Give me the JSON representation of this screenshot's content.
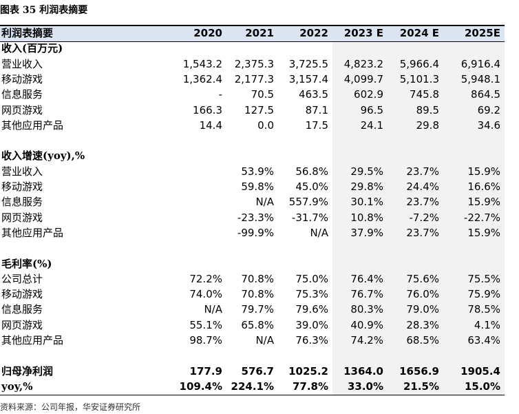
{
  "title": "图表 35 利润表摘要",
  "table": {
    "header": [
      "利润表摘要",
      "2020",
      "2021",
      "2022",
      "2023 E",
      "2024 E",
      "2025E"
    ],
    "sections": [
      {
        "title": "收入(百万元)",
        "rows": [
          [
            "营业收入",
            "1,543.2",
            "2,375.3",
            "3,725.5",
            "4,823.2",
            "5,966.4",
            "6,916.4"
          ],
          [
            "移动游戏",
            "1,362.4",
            "2,177.3",
            "3,157.4",
            "4,099.7",
            "5,101.3",
            "5,948.1"
          ],
          [
            "信息服务",
            "-",
            "70.5",
            "463.5",
            "602.9",
            "745.8",
            "864.5"
          ],
          [
            "网页游戏",
            "166.3",
            "127.5",
            "87.1",
            "96.5",
            "89.5",
            "69.2"
          ],
          [
            "其他应用产品",
            "14.4",
            "0.0",
            "17.5",
            "24.1",
            "29.8",
            "34.6"
          ]
        ]
      },
      {
        "title": "收入增速(yoy),%",
        "rows": [
          [
            "营业收入",
            "",
            "53.9%",
            "56.8%",
            "29.5%",
            "23.7%",
            "15.9%"
          ],
          [
            "移动游戏",
            "",
            "59.8%",
            "45.0%",
            "29.8%",
            "24.4%",
            "16.6%"
          ],
          [
            "信息服务",
            "",
            "N/A",
            "557.9%",
            "30.1%",
            "23.7%",
            "15.9%"
          ],
          [
            "网页游戏",
            "",
            "-23.3%",
            "-31.7%",
            "10.8%",
            "-7.2%",
            "-22.7%"
          ],
          [
            "其他应用产品",
            "",
            "-99.9%",
            "N/A",
            "37.9%",
            "23.7%",
            "15.9%"
          ]
        ]
      },
      {
        "title": "毛利率(%)",
        "rows": [
          [
            "公司总计",
            "72.2%",
            "70.8%",
            "75.0%",
            "76.4%",
            "75.6%",
            "75.5%"
          ],
          [
            "移动游戏",
            "74.0%",
            "70.8%",
            "75.3%",
            "76.7%",
            "76.0%",
            "75.9%"
          ],
          [
            "信息服务",
            "N/A",
            "79.7%",
            "79.6%",
            "80.3%",
            "79.0%",
            "78.5%"
          ],
          [
            "网页游戏",
            "55.1%",
            "65.8%",
            "39.0%",
            "40.9%",
            "28.3%",
            "4.1%"
          ],
          [
            "其他应用产品",
            "98.7%",
            "N/A",
            "76.3%",
            "74.2%",
            "68.5%",
            "63.4%"
          ]
        ]
      }
    ],
    "summary": [
      [
        "归母净利润",
        "177.9",
        "576.7",
        "1025.2",
        "1364.0",
        "1656.9",
        "1905.4"
      ],
      [
        "yoy,%",
        "109.4%",
        "224.1%",
        "77.8%",
        "33.0%",
        "21.5%",
        "15.0%"
      ]
    ]
  },
  "source": "资料来源：公司年报，华安证券研究所"
}
